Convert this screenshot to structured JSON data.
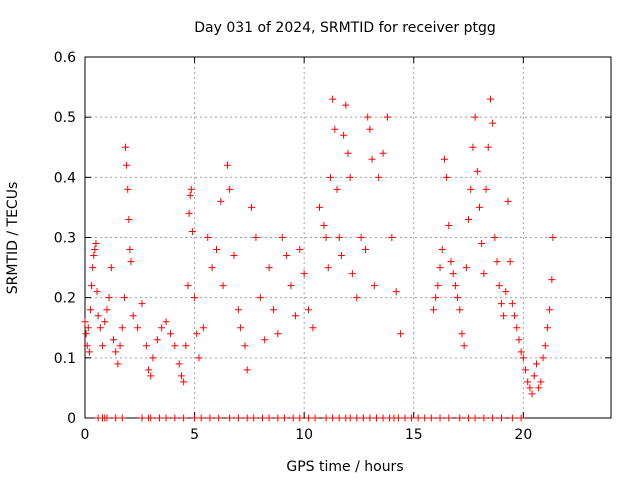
{
  "chart_data": {
    "type": "scatter",
    "title": "Day 031 of 2024, SRMTID for receiver ptgg",
    "xlabel": "GPS time / hours",
    "ylabel": "SRMTID / TECUs",
    "xlim": [
      0,
      24
    ],
    "ylim": [
      0,
      0.6
    ],
    "grid": true,
    "marker": "+",
    "color": "#ff0000",
    "x_ticks": [
      0,
      5,
      10,
      15,
      20
    ],
    "y_ticks": [
      0,
      0.1,
      0.2,
      0.3,
      0.4,
      0.5,
      0.6
    ],
    "x_tick_labels": [
      "0",
      "5",
      "10",
      "15",
      "20"
    ],
    "y_tick_labels": [
      "0",
      "0.1",
      "0.2",
      "0.3",
      "0.4",
      "0.5",
      "0.6"
    ],
    "series": [
      {
        "name": "SRMTID",
        "points": [
          [
            0.0,
            0.16
          ],
          [
            0.05,
            0.14
          ],
          [
            0.1,
            0.12
          ],
          [
            0.15,
            0.15
          ],
          [
            0.2,
            0.11
          ],
          [
            0.25,
            0.18
          ],
          [
            0.3,
            0.22
          ],
          [
            0.35,
            0.25
          ],
          [
            0.4,
            0.27
          ],
          [
            0.45,
            0.28
          ],
          [
            0.5,
            0.29
          ],
          [
            0.55,
            0.21
          ],
          [
            0.6,
            0.17
          ],
          [
            0.7,
            0.15
          ],
          [
            0.8,
            0.12
          ],
          [
            0.9,
            0.16
          ],
          [
            1.0,
            0.18
          ],
          [
            1.1,
            0.2
          ],
          [
            1.2,
            0.25
          ],
          [
            1.3,
            0.13
          ],
          [
            1.4,
            0.11
          ],
          [
            1.5,
            0.09
          ],
          [
            1.6,
            0.12
          ],
          [
            1.7,
            0.15
          ],
          [
            1.8,
            0.2
          ],
          [
            1.85,
            0.45
          ],
          [
            1.9,
            0.42
          ],
          [
            1.95,
            0.38
          ],
          [
            2.0,
            0.33
          ],
          [
            2.05,
            0.28
          ],
          [
            2.1,
            0.26
          ],
          [
            2.2,
            0.17
          ],
          [
            2.4,
            0.15
          ],
          [
            2.6,
            0.19
          ],
          [
            2.8,
            0.12
          ],
          [
            2.9,
            0.08
          ],
          [
            3.0,
            0.07
          ],
          [
            3.1,
            0.1
          ],
          [
            3.3,
            0.13
          ],
          [
            3.5,
            0.15
          ],
          [
            3.7,
            0.16
          ],
          [
            3.9,
            0.14
          ],
          [
            4.1,
            0.12
          ],
          [
            4.3,
            0.09
          ],
          [
            4.4,
            0.07
          ],
          [
            4.5,
            0.06
          ],
          [
            4.6,
            0.12
          ],
          [
            4.7,
            0.22
          ],
          [
            4.75,
            0.34
          ],
          [
            4.8,
            0.37
          ],
          [
            4.85,
            0.38
          ],
          [
            4.9,
            0.31
          ],
          [
            5.0,
            0.2
          ],
          [
            5.1,
            0.14
          ],
          [
            5.2,
            0.1
          ],
          [
            5.4,
            0.15
          ],
          [
            5.6,
            0.3
          ],
          [
            5.8,
            0.25
          ],
          [
            6.0,
            0.28
          ],
          [
            6.2,
            0.36
          ],
          [
            6.3,
            0.22
          ],
          [
            6.5,
            0.42
          ],
          [
            6.6,
            0.38
          ],
          [
            6.8,
            0.27
          ],
          [
            7.0,
            0.18
          ],
          [
            7.1,
            0.15
          ],
          [
            7.3,
            0.12
          ],
          [
            7.4,
            0.08
          ],
          [
            7.6,
            0.35
          ],
          [
            7.8,
            0.3
          ],
          [
            8.0,
            0.2
          ],
          [
            8.2,
            0.13
          ],
          [
            8.4,
            0.25
          ],
          [
            8.6,
            0.18
          ],
          [
            8.8,
            0.14
          ],
          [
            9.0,
            0.3
          ],
          [
            9.2,
            0.27
          ],
          [
            9.4,
            0.22
          ],
          [
            9.6,
            0.17
          ],
          [
            9.8,
            0.28
          ],
          [
            10.0,
            0.24
          ],
          [
            10.2,
            0.18
          ],
          [
            10.4,
            0.15
          ],
          [
            10.7,
            0.35
          ],
          [
            10.9,
            0.32
          ],
          [
            11.0,
            0.3
          ],
          [
            11.1,
            0.25
          ],
          [
            11.2,
            0.4
          ],
          [
            11.3,
            0.53
          ],
          [
            11.4,
            0.48
          ],
          [
            11.5,
            0.38
          ],
          [
            11.6,
            0.3
          ],
          [
            11.7,
            0.27
          ],
          [
            11.8,
            0.47
          ],
          [
            11.9,
            0.52
          ],
          [
            12.0,
            0.44
          ],
          [
            12.1,
            0.4
          ],
          [
            12.2,
            0.24
          ],
          [
            12.4,
            0.2
          ],
          [
            12.6,
            0.3
          ],
          [
            12.8,
            0.28
          ],
          [
            12.9,
            0.5
          ],
          [
            13.0,
            0.48
          ],
          [
            13.1,
            0.43
          ],
          [
            13.2,
            0.22
          ],
          [
            13.4,
            0.4
          ],
          [
            13.6,
            0.44
          ],
          [
            13.8,
            0.5
          ],
          [
            14.0,
            0.3
          ],
          [
            14.2,
            0.21
          ],
          [
            14.4,
            0.14
          ],
          [
            15.9,
            0.18
          ],
          [
            16.0,
            0.2
          ],
          [
            16.1,
            0.22
          ],
          [
            16.2,
            0.25
          ],
          [
            16.3,
            0.28
          ],
          [
            16.4,
            0.43
          ],
          [
            16.5,
            0.4
          ],
          [
            16.6,
            0.32
          ],
          [
            16.7,
            0.26
          ],
          [
            16.8,
            0.24
          ],
          [
            16.9,
            0.22
          ],
          [
            17.0,
            0.2
          ],
          [
            17.1,
            0.18
          ],
          [
            17.2,
            0.14
          ],
          [
            17.3,
            0.12
          ],
          [
            17.4,
            0.25
          ],
          [
            17.5,
            0.33
          ],
          [
            17.6,
            0.38
          ],
          [
            17.7,
            0.45
          ],
          [
            17.8,
            0.5
          ],
          [
            17.9,
            0.41
          ],
          [
            18.0,
            0.35
          ],
          [
            18.1,
            0.29
          ],
          [
            18.2,
            0.24
          ],
          [
            18.3,
            0.38
          ],
          [
            18.4,
            0.45
          ],
          [
            18.5,
            0.53
          ],
          [
            18.6,
            0.49
          ],
          [
            18.7,
            0.3
          ],
          [
            18.8,
            0.26
          ],
          [
            18.9,
            0.22
          ],
          [
            19.0,
            0.19
          ],
          [
            19.1,
            0.17
          ],
          [
            19.2,
            0.21
          ],
          [
            19.3,
            0.36
          ],
          [
            19.4,
            0.26
          ],
          [
            19.5,
            0.19
          ],
          [
            19.6,
            0.17
          ],
          [
            19.7,
            0.15
          ],
          [
            19.8,
            0.13
          ],
          [
            19.9,
            0.11
          ],
          [
            20.0,
            0.1
          ],
          [
            20.1,
            0.08
          ],
          [
            20.2,
            0.06
          ],
          [
            20.3,
            0.05
          ],
          [
            20.4,
            0.04
          ],
          [
            20.5,
            0.07
          ],
          [
            20.6,
            0.09
          ],
          [
            20.7,
            0.05
          ],
          [
            20.8,
            0.06
          ],
          [
            20.9,
            0.1
          ],
          [
            21.0,
            0.12
          ],
          [
            21.1,
            0.15
          ],
          [
            21.2,
            0.18
          ],
          [
            21.3,
            0.23
          ],
          [
            21.35,
            0.3
          ]
        ]
      }
    ],
    "zero_points_x": [
      0.6,
      0.8,
      0.9,
      1.0,
      1.4,
      1.7,
      2.6,
      2.9,
      3.0,
      3.4,
      3.7,
      4.1,
      4.5,
      5.0,
      5.3,
      5.7,
      6.1,
      6.6,
      7.0,
      7.4,
      7.7,
      8.1,
      8.4,
      8.8,
      9.1,
      9.5,
      9.8,
      10.2,
      10.5,
      11.0,
      11.3,
      11.6,
      11.9,
      12.1,
      12.4,
      12.7,
      13.0,
      13.3,
      13.6,
      13.9,
      14.1,
      14.3,
      14.6,
      14.9,
      15.2,
      15.5,
      15.8,
      16.2,
      16.6,
      17.1,
      17.5,
      17.8,
      18.2,
      18.6,
      19.0,
      19.5,
      19.9
    ]
  }
}
